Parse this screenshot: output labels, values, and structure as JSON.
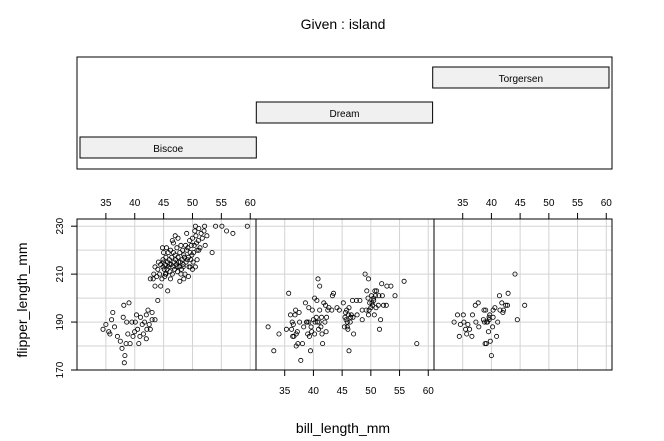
{
  "chart_data": {
    "type": "scatter",
    "title": "Given : island",
    "xlabel": "bill_length_mm",
    "ylabel": "flipper_length_mm",
    "xlim": [
      30,
      61
    ],
    "ylim": [
      170,
      233
    ],
    "x_ticks": [
      35,
      40,
      45,
      50,
      55,
      60
    ],
    "y_ticks": [
      170,
      190,
      210,
      230
    ],
    "grid": true,
    "given_panels": [
      {
        "name": "Biscoe",
        "level": 1
      },
      {
        "name": "Dream",
        "level": 2
      },
      {
        "name": "Torgersen",
        "level": 3
      }
    ],
    "panels": [
      {
        "name": "Biscoe",
        "points": [
          [
            34.5,
            187
          ],
          [
            35.0,
            189
          ],
          [
            35.5,
            186
          ],
          [
            35.7,
            185
          ],
          [
            36.0,
            191
          ],
          [
            36.2,
            194
          ],
          [
            36.5,
            188
          ],
          [
            37.0,
            184
          ],
          [
            37.5,
            182
          ],
          [
            37.8,
            179
          ],
          [
            38.0,
            192
          ],
          [
            38.1,
            197
          ],
          [
            38.2,
            173
          ],
          [
            38.3,
            176
          ],
          [
            38.5,
            181
          ],
          [
            38.6,
            190
          ],
          [
            38.8,
            185
          ],
          [
            39.0,
            198
          ],
          [
            39.2,
            181
          ],
          [
            39.5,
            190
          ],
          [
            39.7,
            184
          ],
          [
            40.0,
            186
          ],
          [
            40.1,
            190
          ],
          [
            40.3,
            193
          ],
          [
            40.5,
            187
          ],
          [
            40.7,
            181
          ],
          [
            40.9,
            184
          ],
          [
            41.0,
            192
          ],
          [
            41.3,
            189
          ],
          [
            41.5,
            185
          ],
          [
            41.7,
            190
          ],
          [
            42.0,
            193
          ],
          [
            42.0,
            183
          ],
          [
            42.1,
            187
          ],
          [
            42.3,
            195
          ],
          [
            42.5,
            189
          ],
          [
            42.7,
            187
          ],
          [
            43.0,
            194
          ],
          [
            43.0,
            191
          ],
          [
            43.5,
            191
          ],
          [
            43.2,
            208
          ],
          [
            43.3,
            210
          ],
          [
            43.5,
            213
          ],
          [
            43.8,
            209
          ],
          [
            44.0,
            212
          ],
          [
            44.1,
            215
          ],
          [
            44.3,
            210
          ],
          [
            44.5,
            214
          ],
          [
            44.7,
            208
          ],
          [
            44.9,
            216
          ],
          [
            45.0,
            219
          ],
          [
            45.1,
            212
          ],
          [
            45.2,
            214
          ],
          [
            45.3,
            210
          ],
          [
            45.4,
            217
          ],
          [
            45.5,
            221
          ],
          [
            45.6,
            212
          ],
          [
            45.7,
            215
          ],
          [
            45.8,
            219
          ],
          [
            45.9,
            213
          ],
          [
            46.0,
            216
          ],
          [
            46.1,
            211
          ],
          [
            46.2,
            220
          ],
          [
            46.3,
            214
          ],
          [
            46.4,
            217
          ],
          [
            46.5,
            210
          ],
          [
            46.6,
            213
          ],
          [
            46.7,
            219
          ],
          [
            46.8,
            215
          ],
          [
            46.9,
            212
          ],
          [
            47.0,
            218
          ],
          [
            47.1,
            216
          ],
          [
            47.2,
            214
          ],
          [
            47.3,
            221
          ],
          [
            47.4,
            211
          ],
          [
            47.5,
            217
          ],
          [
            47.6,
            215
          ],
          [
            47.7,
            213
          ],
          [
            47.8,
            219
          ],
          [
            47.9,
            215
          ],
          [
            48.0,
            222
          ],
          [
            48.1,
            212
          ],
          [
            48.2,
            216
          ],
          [
            48.3,
            220
          ],
          [
            48.4,
            214
          ],
          [
            48.5,
            218
          ],
          [
            48.6,
            217
          ],
          [
            48.7,
            210
          ],
          [
            48.8,
            222
          ],
          [
            48.9,
            215
          ],
          [
            49.0,
            220
          ],
          [
            49.1,
            216
          ],
          [
            49.2,
            221
          ],
          [
            49.3,
            217
          ],
          [
            49.4,
            213
          ],
          [
            49.5,
            224
          ],
          [
            49.6,
            219
          ],
          [
            49.7,
            216
          ],
          [
            49.8,
            222
          ],
          [
            49.9,
            218
          ],
          [
            50.0,
            225
          ],
          [
            50.1,
            215
          ],
          [
            50.2,
            219
          ],
          [
            50.3,
            222
          ],
          [
            50.4,
            228
          ],
          [
            50.5,
            230
          ],
          [
            50.6,
            226
          ],
          [
            50.7,
            223
          ],
          [
            50.8,
            220
          ],
          [
            51.0,
            224
          ],
          [
            51.1,
            229
          ],
          [
            51.3,
            221
          ],
          [
            51.5,
            227
          ],
          [
            51.7,
            225
          ],
          [
            52.0,
            228
          ],
          [
            52.1,
            230
          ],
          [
            52.2,
            222
          ],
          [
            52.5,
            226
          ],
          [
            53.4,
            219
          ],
          [
            54.0,
            230
          ],
          [
            55.1,
            230
          ],
          [
            55.9,
            228
          ],
          [
            57.0,
            227
          ],
          [
            59.5,
            230
          ],
          [
            44.0,
            199
          ],
          [
            45.2,
            209
          ],
          [
            46.0,
            214
          ],
          [
            44.8,
            221
          ],
          [
            46.7,
            223
          ],
          [
            47.5,
            225
          ],
          [
            48.5,
            208
          ],
          [
            49.0,
            227
          ],
          [
            47.0,
            226
          ],
          [
            50.5,
            213
          ],
          [
            45.7,
            203
          ],
          [
            43.5,
            205
          ],
          [
            42.7,
            208
          ],
          [
            44.5,
            205
          ],
          [
            45.4,
            210
          ],
          [
            46.2,
            208
          ],
          [
            49.6,
            213
          ],
          [
            48.0,
            210
          ],
          [
            47.8,
            207
          ],
          [
            51.1,
            220
          ],
          [
            50.8,
            216
          ],
          [
            49.3,
            209
          ],
          [
            46.5,
            224
          ],
          [
            45.0,
            215
          ],
          [
            48.4,
            213
          ],
          [
            50.0,
            212
          ],
          [
            44.9,
            213
          ],
          [
            47.3,
            213
          ]
        ]
      },
      {
        "name": "Dream",
        "points": [
          [
            32.1,
            188
          ],
          [
            33.1,
            178
          ],
          [
            34.0,
            185
          ],
          [
            35.3,
            187
          ],
          [
            35.7,
            202
          ],
          [
            36.0,
            193
          ],
          [
            36.2,
            187
          ],
          [
            36.3,
            190
          ],
          [
            36.5,
            189
          ],
          [
            36.6,
            184
          ],
          [
            36.8,
            193
          ],
          [
            36.9,
            195
          ],
          [
            37.0,
            185
          ],
          [
            37.2,
            186
          ],
          [
            37.3,
            181
          ],
          [
            37.5,
            194
          ],
          [
            37.6,
            190
          ],
          [
            37.8,
            174
          ],
          [
            38.1,
            181
          ],
          [
            38.3,
            188
          ],
          [
            38.6,
            198
          ],
          [
            38.8,
            190
          ],
          [
            39.0,
            185
          ],
          [
            39.2,
            196
          ],
          [
            39.3,
            184
          ],
          [
            39.5,
            178
          ],
          [
            39.6,
            188
          ],
          [
            39.7,
            186
          ],
          [
            39.8,
            195
          ],
          [
            40.0,
            191
          ],
          [
            40.2,
            185
          ],
          [
            40.3,
            190
          ],
          [
            40.5,
            192
          ],
          [
            40.6,
            199
          ],
          [
            40.7,
            190
          ],
          [
            40.8,
            208
          ],
          [
            41.0,
            190
          ],
          [
            41.1,
            195
          ],
          [
            41.3,
            188
          ],
          [
            41.4,
            192
          ],
          [
            41.5,
            185
          ],
          [
            41.6,
            181
          ],
          [
            41.8,
            198
          ],
          [
            42.0,
            190
          ],
          [
            42.1,
            197
          ],
          [
            42.2,
            186
          ],
          [
            42.3,
            192
          ],
          [
            42.5,
            195
          ],
          [
            43.2,
            195
          ],
          [
            43.5,
            202
          ],
          [
            44.1,
            196
          ],
          [
            45.2,
            198
          ],
          [
            45.4,
            188
          ],
          [
            45.5,
            192
          ],
          [
            45.6,
            194
          ],
          [
            45.7,
            191
          ],
          [
            45.8,
            195
          ],
          [
            45.9,
            190
          ],
          [
            46.0,
            187
          ],
          [
            46.1,
            193
          ],
          [
            46.2,
            196
          ],
          [
            46.4,
            190
          ],
          [
            46.5,
            192
          ],
          [
            46.6,
            193
          ],
          [
            46.8,
            199
          ],
          [
            46.9,
            192
          ],
          [
            47.0,
            185
          ],
          [
            47.5,
            199
          ],
          [
            48.1,
            199
          ],
          [
            48.5,
            195
          ],
          [
            49.0,
            210
          ],
          [
            49.2,
            195
          ],
          [
            49.3,
            203
          ],
          [
            49.5,
            200
          ],
          [
            49.6,
            193
          ],
          [
            49.7,
            195
          ],
          [
            49.8,
            198
          ],
          [
            50.0,
            196
          ],
          [
            50.1,
            201
          ],
          [
            50.2,
            198
          ],
          [
            50.3,
            197
          ],
          [
            50.5,
            200
          ],
          [
            50.6,
            193
          ],
          [
            50.7,
            203
          ],
          [
            50.8,
            201
          ],
          [
            50.9,
            196
          ],
          [
            51.0,
            203
          ],
          [
            51.3,
            197
          ],
          [
            51.4,
            201
          ],
          [
            51.5,
            187
          ],
          [
            51.7,
            191
          ],
          [
            51.9,
            206
          ],
          [
            52.0,
            201
          ],
          [
            52.2,
            197
          ],
          [
            52.7,
            197
          ],
          [
            52.8,
            205
          ],
          [
            53.5,
            205
          ],
          [
            54.2,
            201
          ],
          [
            55.8,
            207
          ],
          [
            58.0,
            181
          ],
          [
            46.2,
            178
          ],
          [
            45.9,
            188
          ],
          [
            47.6,
            193
          ],
          [
            48.5,
            191
          ],
          [
            50.5,
            199
          ],
          [
            49.6,
            208
          ],
          [
            40.9,
            187
          ],
          [
            42.7,
            196
          ],
          [
            39.2,
            190
          ],
          [
            37.0,
            180
          ],
          [
            36.4,
            184
          ],
          [
            38.9,
            190
          ],
          [
            41.1,
            205
          ],
          [
            40.2,
            200
          ],
          [
            43.3,
            201
          ],
          [
            44.5,
            195
          ]
        ]
      },
      {
        "name": "Torgersen",
        "points": [
          [
            33.5,
            190
          ],
          [
            34.1,
            193
          ],
          [
            34.4,
            184
          ],
          [
            34.6,
            189
          ],
          [
            35.1,
            193
          ],
          [
            35.2,
            190
          ],
          [
            35.5,
            187
          ],
          [
            35.7,
            185
          ],
          [
            35.9,
            189
          ],
          [
            36.2,
            187
          ],
          [
            36.6,
            184
          ],
          [
            36.7,
            193
          ],
          [
            37.2,
            197
          ],
          [
            37.3,
            190
          ],
          [
            37.7,
            198
          ],
          [
            37.8,
            188
          ],
          [
            38.6,
            191
          ],
          [
            38.7,
            195
          ],
          [
            38.8,
            190
          ],
          [
            38.9,
            181
          ],
          [
            39.0,
            195
          ],
          [
            39.1,
            181
          ],
          [
            39.2,
            190
          ],
          [
            39.3,
            190
          ],
          [
            39.5,
            186
          ],
          [
            39.6,
            191
          ],
          [
            39.7,
            193
          ],
          [
            40.2,
            188
          ],
          [
            40.3,
            195
          ],
          [
            40.6,
            196
          ],
          [
            40.9,
            184
          ],
          [
            41.1,
            190
          ],
          [
            41.4,
            201
          ],
          [
            41.8,
            198
          ],
          [
            42.1,
            195
          ],
          [
            42.5,
            197
          ],
          [
            42.8,
            197
          ],
          [
            42.9,
            202
          ],
          [
            44.1,
            210
          ],
          [
            45.8,
            197
          ],
          [
            40.0,
            176
          ],
          [
            41.5,
            195
          ],
          [
            40.3,
            192
          ],
          [
            42.0,
            194
          ],
          [
            39.8,
            182
          ],
          [
            39.6,
            192
          ],
          [
            44.5,
            191
          ]
        ]
      }
    ]
  }
}
